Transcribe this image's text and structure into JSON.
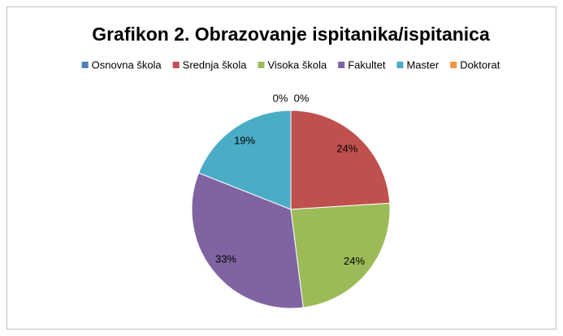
{
  "chart_data": {
    "type": "pie",
    "title": "Grafikon 2. Obrazovanje ispitanika/ispitanica",
    "categories": [
      "Osnovna škola",
      "Srednja škola",
      "Visoka škola",
      "Fakultet",
      "Master",
      "Doktorat"
    ],
    "values": [
      0,
      24,
      24,
      33,
      19,
      0
    ],
    "value_labels": [
      "0%",
      "24%",
      "24%",
      "33%",
      "19%",
      "0%"
    ],
    "colors": [
      "#4f81bd",
      "#c0504d",
      "#9bbb59",
      "#8064a2",
      "#4bacc6",
      "#f79646"
    ],
    "legend": "top"
  }
}
